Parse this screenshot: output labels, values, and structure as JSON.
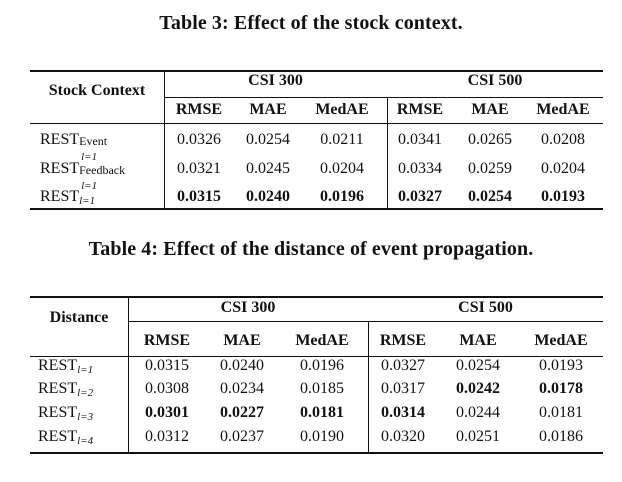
{
  "table3": {
    "caption": "Table 3: Effect of the stock context.",
    "row_header": "Stock Context",
    "groups": [
      "CSI 300",
      "CSI 500"
    ],
    "metrics": [
      "RMSE",
      "MAE",
      "MedAE",
      "RMSE",
      "MAE",
      "MedAE"
    ],
    "rows": [
      {
        "base": "REST",
        "sup": "Event",
        "sub": "l=1",
        "values": [
          "0.0326",
          "0.0254",
          "0.0211",
          "0.0341",
          "0.0265",
          "0.0208"
        ],
        "bold": [
          false,
          false,
          false,
          false,
          false,
          false
        ]
      },
      {
        "base": "REST",
        "sup": "Feedback",
        "sub": "l=1",
        "values": [
          "0.0321",
          "0.0245",
          "0.0204",
          "0.0334",
          "0.0259",
          "0.0204"
        ],
        "bold": [
          false,
          false,
          false,
          false,
          false,
          false
        ]
      },
      {
        "base": "REST",
        "sup": "",
        "sub": "l=1",
        "values": [
          "0.0315",
          "0.0240",
          "0.0196",
          "0.0327",
          "0.0254",
          "0.0193"
        ],
        "bold": [
          true,
          true,
          true,
          true,
          true,
          true
        ]
      }
    ]
  },
  "table4": {
    "caption": "Table 4: Effect of the distance of event propagation.",
    "row_header": "Distance",
    "groups": [
      "CSI 300",
      "CSI 500"
    ],
    "metrics": [
      "RMSE",
      "MAE",
      "MedAE",
      "RMSE",
      "MAE",
      "MedAE"
    ],
    "rows": [
      {
        "base": "REST",
        "sub": "l=1",
        "values": [
          "0.0315",
          "0.0240",
          "0.0196",
          "0.0327",
          "0.0254",
          "0.0193"
        ],
        "bold": [
          false,
          false,
          false,
          false,
          false,
          false
        ]
      },
      {
        "base": "REST",
        "sub": "l=2",
        "values": [
          "0.0308",
          "0.0234",
          "0.0185",
          "0.0317",
          "0.0242",
          "0.0178"
        ],
        "bold": [
          false,
          false,
          false,
          false,
          true,
          true
        ]
      },
      {
        "base": "REST",
        "sub": "l=3",
        "values": [
          "0.0301",
          "0.0227",
          "0.0181",
          "0.0314",
          "0.0244",
          "0.0181"
        ],
        "bold": [
          true,
          true,
          true,
          true,
          false,
          false
        ]
      },
      {
        "base": "REST",
        "sub": "l=4",
        "values": [
          "0.0312",
          "0.0237",
          "0.0190",
          "0.0320",
          "0.0251",
          "0.0186"
        ],
        "bold": [
          false,
          false,
          false,
          false,
          false,
          false
        ]
      }
    ]
  }
}
